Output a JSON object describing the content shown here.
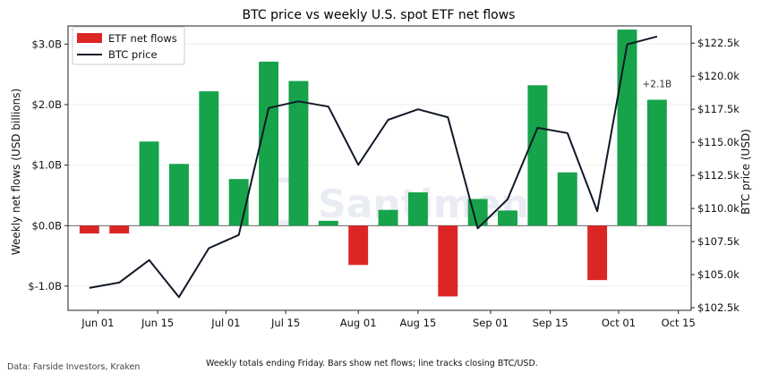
{
  "footer": {
    "source": "Data: Farside Investors, Kraken",
    "caption": "Weekly totals ending Friday. Bars show net flows; line tracks closing BTC/USD."
  },
  "chart_data": {
    "type": "bar",
    "title": "BTC price vs weekly U.S. spot ETF net flows",
    "ylabel_left": "Weekly net flows (USD billions)",
    "ylabel_right": "BTC price (USD)",
    "xlabel": "",
    "x_dates": [
      "2025-05-30",
      "2025-06-06",
      "2025-06-13",
      "2025-06-20",
      "2025-06-27",
      "2025-07-04",
      "2025-07-11",
      "2025-07-18",
      "2025-07-25",
      "2025-08-01",
      "2025-08-08",
      "2025-08-15",
      "2025-08-22",
      "2025-08-29",
      "2025-09-05",
      "2025-09-12",
      "2025-09-19",
      "2025-09-26",
      "2025-10-03",
      "2025-10-10"
    ],
    "x_range": [
      "2025-05-25",
      "2025-10-18"
    ],
    "x_ticks": [
      {
        "date": "2025-06-01",
        "label": "Jun 01"
      },
      {
        "date": "2025-06-15",
        "label": "Jun 15"
      },
      {
        "date": "2025-07-01",
        "label": "Jul 01"
      },
      {
        "date": "2025-07-15",
        "label": "Jul 15"
      },
      {
        "date": "2025-08-01",
        "label": "Aug 01"
      },
      {
        "date": "2025-08-15",
        "label": "Aug 15"
      },
      {
        "date": "2025-09-01",
        "label": "Sep 01"
      },
      {
        "date": "2025-09-15",
        "label": "Sep 15"
      },
      {
        "date": "2025-10-01",
        "label": "Oct 01"
      },
      {
        "date": "2025-10-15",
        "label": "Oct 15"
      }
    ],
    "series": [
      {
        "name": "ETF net flows",
        "type": "bar",
        "axis": "left",
        "values": [
          -0.13,
          -0.13,
          1.39,
          1.02,
          2.22,
          0.77,
          2.71,
          2.39,
          0.08,
          -0.65,
          0.26,
          0.55,
          -1.17,
          0.44,
          0.25,
          2.32,
          0.88,
          -0.9,
          3.24,
          2.08
        ]
      },
      {
        "name": "BTC price",
        "type": "line",
        "axis": "right",
        "values": [
          104000,
          104400,
          106100,
          103300,
          107000,
          108000,
          117600,
          118100,
          117700,
          113300,
          116700,
          117500,
          116900,
          108500,
          110700,
          116100,
          115700,
          109800,
          122400,
          123000
        ]
      }
    ],
    "ylim_left": [
      -1.4,
      3.3
    ],
    "ylim_right": [
      102300,
      123800
    ],
    "yticks_left": [
      {
        "value": -1,
        "label": "$-1.0B"
      },
      {
        "value": 0,
        "label": "$0.0B"
      },
      {
        "value": 1,
        "label": "$1.0B"
      },
      {
        "value": 2,
        "label": "$2.0B"
      },
      {
        "value": 3,
        "label": "$3.0B"
      }
    ],
    "yticks_right": [
      {
        "value": 102500,
        "label": "$102.5k"
      },
      {
        "value": 105000,
        "label": "$105.0k"
      },
      {
        "value": 107500,
        "label": "$107.5k"
      },
      {
        "value": 110000,
        "label": "$110.0k"
      },
      {
        "value": 112500,
        "label": "$112.5k"
      },
      {
        "value": 115000,
        "label": "$115.0k"
      },
      {
        "value": 117500,
        "label": "$117.5k"
      },
      {
        "value": 120000,
        "label": "$120.0k"
      },
      {
        "value": 122500,
        "label": "$122.5k"
      }
    ],
    "annotation": {
      "text": "+2.1B",
      "date": "2025-10-10",
      "value": 2.08
    },
    "colors": {
      "positive": "#16a34a",
      "negative": "#dc2626",
      "line": "#111827",
      "baseline": "#555555",
      "grid": "#eeeeee"
    },
    "grid": "horizontal",
    "legend": "top-left",
    "watermark": "Santiment"
  }
}
